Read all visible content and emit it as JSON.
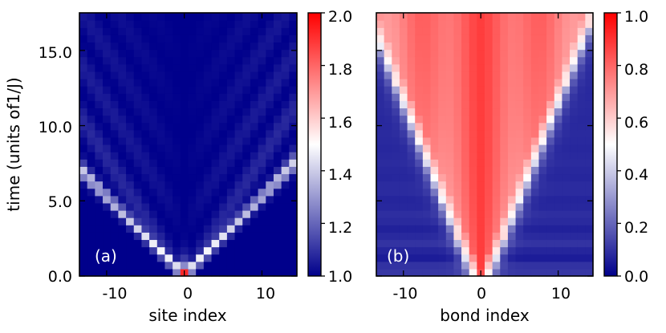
{
  "chart_data": [
    {
      "type": "heatmap",
      "panel_label": "(a)",
      "xlabel": "site index",
      "ylabel": "time (units of1/J)",
      "xticks": [
        -10,
        0,
        10
      ],
      "xtick_labels": [
        "-10",
        "0",
        "10"
      ],
      "yticks": [
        0,
        5,
        10,
        15
      ],
      "ytick_labels": [
        "0.0",
        "5.0",
        "10.0",
        "15.0"
      ],
      "x_range": [
        -13.5,
        14.5
      ],
      "y_range": [
        0,
        17.5
      ],
      "x_sites": [
        -13,
        -12,
        -11,
        -10,
        -9,
        -8,
        -7,
        -6,
        -5,
        -4,
        -3,
        -2,
        -1,
        0,
        1,
        2,
        3,
        4,
        5,
        6,
        7,
        8,
        9,
        10,
        11,
        12,
        13,
        14
      ],
      "n_time_steps": 36,
      "colorscale": [
        "#00008b",
        "#ffffff",
        "#ff0000"
      ],
      "colorbar": {
        "range": [
          1.0,
          2.0
        ],
        "ticks": [
          1.0,
          1.2,
          1.4,
          1.6,
          1.8,
          2.0
        ],
        "tick_labels": [
          "1.0",
          "1.2",
          "1.4",
          "1.6",
          "1.8",
          "2.0"
        ]
      },
      "description": "Site occupation: starts at 2.0 at site 0 (t=0), spreads ballistically as two light-cone fronts with interference stripes; background value 1.0."
    },
    {
      "type": "heatmap",
      "panel_label": "(b)",
      "xlabel": "bond index",
      "ylabel": "",
      "xticks": [
        -10,
        0,
        10
      ],
      "xtick_labels": [
        "-10",
        "0",
        "10"
      ],
      "yticks": [
        0,
        5,
        10,
        15
      ],
      "x_range": [
        -13.5,
        14.5
      ],
      "y_range": [
        0,
        17.5
      ],
      "n_time_steps": 36,
      "colorscale": [
        "#00008b",
        "#ffffff",
        "#ff0000"
      ],
      "colorbar": {
        "range": [
          0.0,
          1.0
        ],
        "ticks": [
          0.0,
          0.2,
          0.4,
          0.6,
          0.8,
          1.0
        ],
        "tick_labels": [
          "0.0",
          "0.2",
          "0.4",
          "0.6",
          "0.8",
          "1.0"
        ]
      },
      "description": "Bond quantity: V-shaped light-cone region with values ~0.7-0.9 inside, sharp white boundary at the front, ~0.05-0.15 outside."
    }
  ]
}
